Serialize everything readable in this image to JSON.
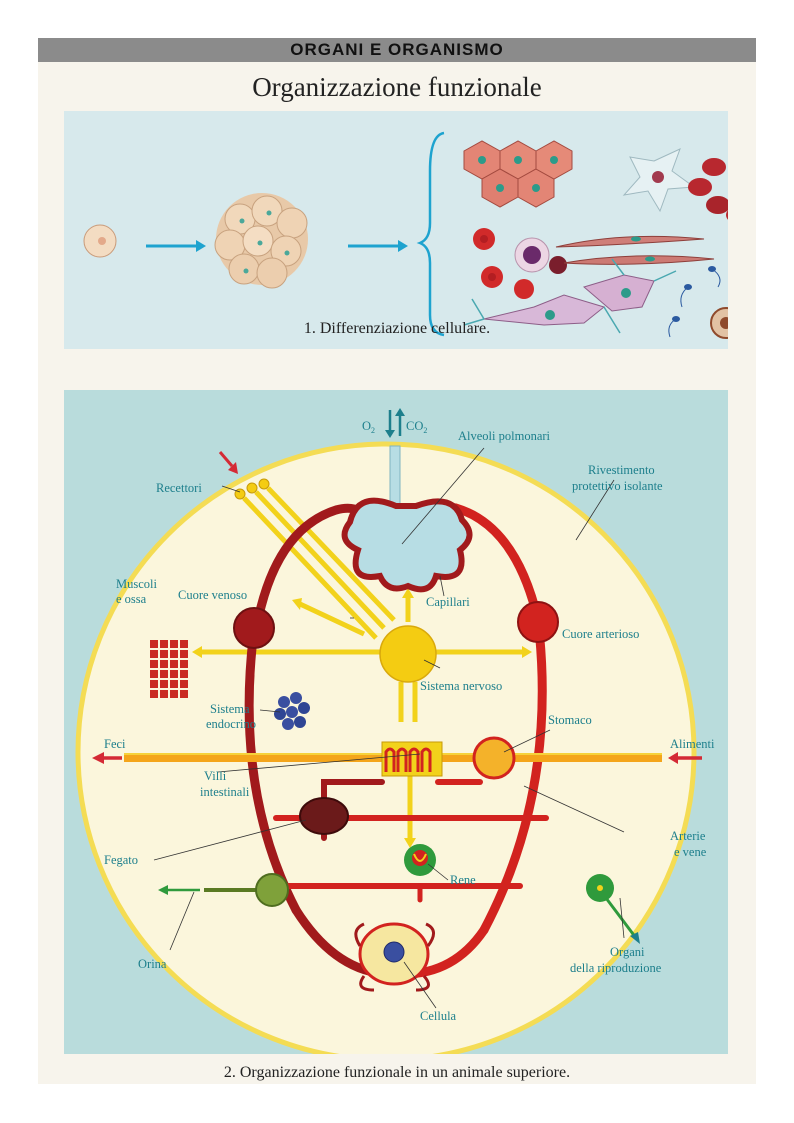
{
  "header": {
    "section_title": "ORGANI E ORGANISMO",
    "page_title": "Organizzazione funzionale"
  },
  "figure1": {
    "caption": "1. Differenziazione cellulare."
  },
  "figure2": {
    "caption": "2. Organizzazione funzionale in un animale superiore.",
    "labels": {
      "gas_o2": "O",
      "gas_o2_sub": "2",
      "gas_co2": "CO",
      "gas_co2_sub": "2",
      "alveoli": "Alveoli polmonari",
      "rivestimento_1": "Rivestimento",
      "rivestimento_2": "protettivo isolante",
      "recettori": "Recettori",
      "muscoli_1": "Muscoli",
      "muscoli_2": "e ossa",
      "cuore_venoso": "Cuore venoso",
      "capillari": "Capillari",
      "cuore_arterioso": "Cuore arterioso",
      "sistema_nervoso": "Sistema nervoso",
      "sistema_endocrino_1": "Sistema",
      "sistema_endocrino_2": "endocrino",
      "stomaco": "Stomaco",
      "feci": "Feci",
      "alimenti": "Alimenti",
      "villi_1": "Villi",
      "villi_2": "intestinali",
      "arterie_1": "Arterie",
      "arterie_2": "e vene",
      "fegato": "Fegato",
      "rene": "Rene",
      "orina": "Orina",
      "organi_1": "Organi",
      "organi_2": "della riproduzione",
      "cellula": "Cellula"
    }
  },
  "colors": {
    "panel_blue": "#b9dcdc",
    "body_cream": "#fbf6dc",
    "blood_red": "#d2231f",
    "vein_dark_red": "#a11a1c",
    "nerve_yellow": "#f2d21b",
    "lung_blue": "#b7dde4",
    "label_teal": "#1d7f8c",
    "kidney_green": "#2f9a3c",
    "liver_brown": "#6b1a1a"
  }
}
